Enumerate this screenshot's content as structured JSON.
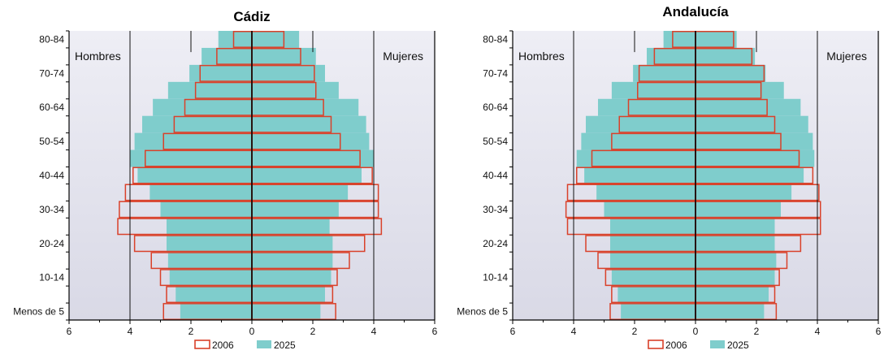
{
  "colors": {
    "bg_top": "#eeeef5",
    "bg_bottom": "#d9d9e6",
    "bar_2025": "#7fcdcc",
    "outline_2006": "#d9412a",
    "axis": "#000000"
  },
  "legend": {
    "label_2006": "2006",
    "label_2025": "2025"
  },
  "chart_data": [
    {
      "type": "bar",
      "title": "Cádiz",
      "left_label": "Hombres",
      "right_label": "Mujeres",
      "xlim": [
        -6,
        6
      ],
      "xticks": [
        "6",
        "4",
        "2",
        "0",
        "2",
        "4",
        "6"
      ],
      "age_labels": [
        "Menos de 5",
        "10-14",
        "20-24",
        "30-34",
        "40-44",
        "50-54",
        "60-64",
        "70-74",
        "80-84"
      ],
      "series": [
        {
          "name": "2006",
          "men": [
            2.9,
            2.8,
            3.0,
            3.3,
            3.85,
            4.4,
            4.35,
            4.15,
            3.9,
            3.5,
            2.9,
            2.55,
            2.2,
            1.85,
            1.7,
            1.15,
            0.6
          ],
          "women": [
            2.75,
            2.65,
            2.8,
            3.2,
            3.7,
            4.25,
            4.15,
            4.15,
            3.95,
            3.55,
            2.9,
            2.6,
            2.35,
            2.1,
            2.05,
            1.6,
            1.05
          ]
        },
        {
          "name": "2025",
          "men": [
            2.35,
            2.5,
            2.7,
            2.75,
            2.8,
            2.8,
            3.0,
            3.35,
            3.75,
            4.0,
            3.85,
            3.6,
            3.25,
            2.75,
            2.05,
            1.65,
            1.1
          ],
          "women": [
            2.25,
            2.4,
            2.6,
            2.65,
            2.65,
            2.55,
            2.85,
            3.15,
            3.6,
            4.0,
            3.85,
            3.75,
            3.5,
            2.85,
            2.4,
            2.1,
            1.55
          ]
        }
      ]
    },
    {
      "type": "bar",
      "title": "Andalucía",
      "left_label": "Hombres",
      "right_label": "Mujeres",
      "xlim": [
        -6,
        6
      ],
      "xticks": [
        "6",
        "4",
        "2",
        "0",
        "2",
        "4",
        "6"
      ],
      "age_labels": [
        "Menos de 5",
        "10-14",
        "20-24",
        "30-34",
        "40-44",
        "50-54",
        "60-64",
        "70-74",
        "80-84"
      ],
      "series": [
        {
          "name": "2006",
          "men": [
            2.8,
            2.75,
            2.95,
            3.2,
            3.6,
            4.2,
            4.25,
            4.2,
            3.9,
            3.4,
            2.75,
            2.5,
            2.2,
            1.9,
            1.85,
            1.35,
            0.75
          ],
          "women": [
            2.65,
            2.6,
            2.75,
            3.0,
            3.45,
            4.1,
            4.1,
            4.05,
            3.85,
            3.4,
            2.8,
            2.6,
            2.35,
            2.15,
            2.25,
            1.85,
            1.25
          ]
        },
        {
          "name": "2025",
          "men": [
            2.45,
            2.55,
            2.75,
            2.8,
            2.8,
            2.8,
            3.0,
            3.25,
            3.65,
            3.9,
            3.75,
            3.6,
            3.2,
            2.75,
            2.05,
            1.6,
            1.05
          ],
          "women": [
            2.25,
            2.4,
            2.6,
            2.65,
            2.6,
            2.6,
            2.8,
            3.15,
            3.55,
            3.9,
            3.85,
            3.7,
            3.45,
            2.9,
            2.3,
            1.95,
            1.35
          ]
        }
      ]
    }
  ]
}
